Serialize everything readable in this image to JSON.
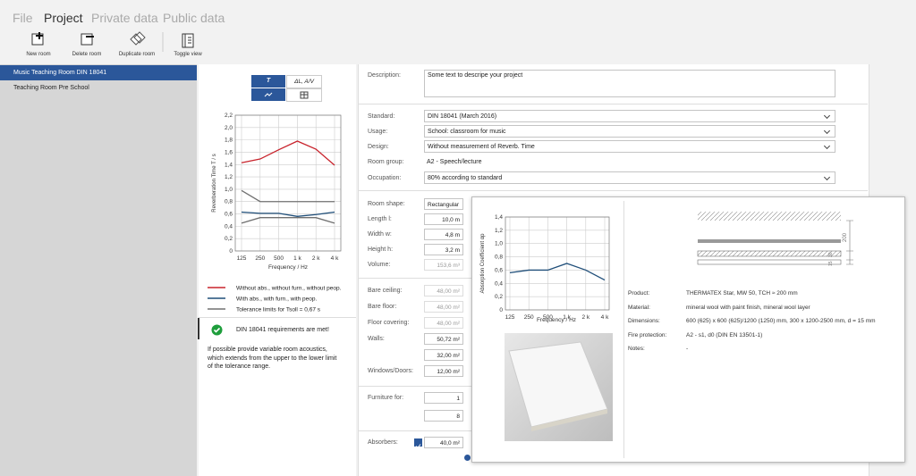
{
  "menu": [
    "File",
    "Project",
    "Private data",
    "Public data"
  ],
  "toolbar": [
    "New room",
    "Delete room",
    "Duplicate room",
    "Toggle view"
  ],
  "rooms": [
    "Music Teaching Room DIN 18041",
    "Teaching Room Pre School"
  ],
  "view_toggle": [
    "T",
    "ΔL, A/V"
  ],
  "chart_data": [
    {
      "type": "line",
      "x_label": "Frequency / Hz",
      "y_label": "Reverberation Time T / s",
      "categories": [
        "125",
        "250",
        "500",
        "1 k",
        "2 k",
        "4 k"
      ],
      "ylim": [
        0,
        2.2
      ],
      "yticks": [
        0,
        {
          "value": 0.2,
          "label": "0,2"
        },
        {
          "value": 0.4,
          "label": "0,4"
        },
        {
          "value": 0.6,
          "label": "0,6"
        },
        {
          "value": 0.8,
          "label": "0,8"
        },
        {
          "value": 1.0,
          "label": "1,0"
        },
        {
          "value": 1.2,
          "label": "1,2"
        },
        {
          "value": 1.4,
          "label": "1,4"
        },
        {
          "value": 1.6,
          "label": "1,6"
        },
        {
          "value": 1.8,
          "label": "1,8"
        },
        {
          "value": 2.0,
          "label": "2,0"
        },
        {
          "value": 2.2,
          "label": "2,2"
        }
      ],
      "grid": true,
      "series": [
        {
          "name": "Without abs., without furn., without peop.",
          "color": "#c8232c",
          "values": [
            1.43,
            1.49,
            1.64,
            1.78,
            1.65,
            1.39
          ]
        },
        {
          "name": "With abs., with furn., with peop.",
          "color": "#1f4e79",
          "values": [
            0.63,
            0.61,
            0.61,
            0.56,
            0.59,
            0.63
          ]
        },
        {
          "name": "Tolerance limits for Tsoll = 0,67 s",
          "color": "#707070",
          "values": [
            0.98,
            0.8,
            0.8,
            0.8,
            0.8,
            0.8
          ]
        },
        {
          "color": "#707070",
          "values": [
            0.45,
            0.54,
            0.54,
            0.54,
            0.54,
            0.45
          ]
        }
      ]
    },
    {
      "type": "line",
      "x_label": "Frequency / Hz",
      "y_label": "Absorption Coefficient αp",
      "categories": [
        "125",
        "250",
        "500",
        "1 k",
        "2 k",
        "4 k"
      ],
      "ylim": [
        0,
        1.4
      ],
      "yticks": [
        0,
        {
          "value": 0.2,
          "label": "0,2"
        },
        {
          "value": 0.4,
          "label": "0,4"
        },
        {
          "value": 0.6,
          "label": "0,6"
        },
        {
          "value": 0.8,
          "label": "0,8"
        },
        {
          "value": 1.0,
          "label": "1,0"
        },
        {
          "value": 1.2,
          "label": "1,2"
        },
        {
          "value": 1.4,
          "label": "1,4"
        }
      ],
      "grid": true,
      "series": [
        {
          "color": "#1f4e79",
          "values": [
            0.56,
            0.6,
            0.6,
            0.7,
            0.6,
            0.45
          ]
        }
      ]
    }
  ],
  "status": {
    "message": "DIN 18041 requirements are met!",
    "note": [
      "If possible provide variable room acoustics,",
      "which extends from the upper to the lower limit",
      "of the tolerance range."
    ]
  },
  "form": {
    "description": {
      "label": "Description:",
      "value": "Some text to descripe your project"
    },
    "standard": {
      "label": "Standard:",
      "value": "DIN 18041 (March 2016)"
    },
    "usage": {
      "label": "Usage:",
      "value": "School: classroom for music"
    },
    "design": {
      "label": "Design:",
      "value": "Without measurement of Reverb. Time"
    },
    "room_group": {
      "label": "Room group:",
      "value": "A2 - Speech/lecture"
    },
    "occupation": {
      "label": "Occupation:",
      "value": "80% according to standard"
    },
    "room_shape": {
      "label": "Room shape:",
      "value": "Rectangular"
    },
    "length": {
      "label": "Length l:",
      "value": "10,0 m"
    },
    "width": {
      "label": "Width w:",
      "value": "4,8 m"
    },
    "height": {
      "label": "Height h:",
      "value": "3,2 m"
    },
    "volume": {
      "label": "Volume:",
      "value": "153,6 m³"
    },
    "bare_ceiling": {
      "label": "Bare ceiling:",
      "value": "48,00 m²"
    },
    "bare_floor": {
      "label": "Bare floor:",
      "value": "48,00 m²"
    },
    "floor_covering": {
      "label": "Floor covering:",
      "value": "48,00 m²"
    },
    "walls": {
      "label": "Walls:",
      "values": [
        "50,72 m²",
        "32,00 m²"
      ]
    },
    "windows_doors": {
      "label": "Windows/Doors:",
      "value": "12,00 m²"
    },
    "furniture": {
      "label": "Furniture for:",
      "values": [
        "1",
        "8"
      ]
    },
    "absorbers": {
      "label": "Absorbers:",
      "value": "40,0 m²"
    }
  },
  "product": {
    "rows": [
      [
        "Product:",
        "THERMATEX Star, MW 50, TCH ≈ 200 mm"
      ],
      [
        "Material:",
        "mineral wool with paint finish, mineral wool layer"
      ],
      [
        "Dimensions:",
        "600 (625) x 600 (625)/1200 (1250) mm, 300 x 1200-2500 mm, d = 15 mm"
      ],
      [
        "Fire protection:",
        "A2 - s1, d0 (DIN EN 13501-1)"
      ],
      [
        "Notes:",
        "-"
      ]
    ],
    "dimensions": [
      "200",
      "30",
      "15"
    ]
  }
}
